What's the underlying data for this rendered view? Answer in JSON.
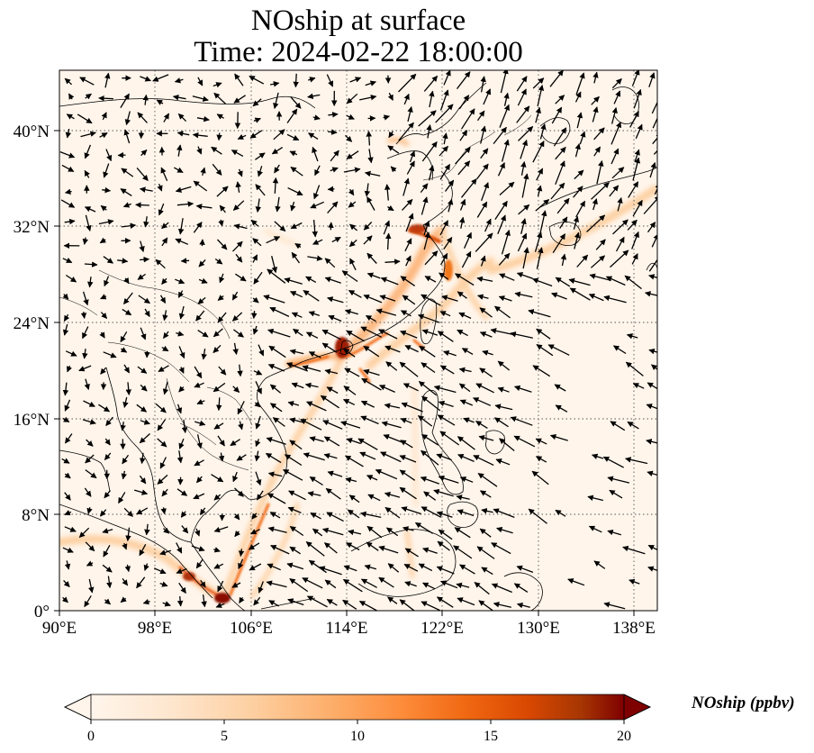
{
  "title": {
    "line1": "NOship at surface",
    "line2": "Time: 2024-02-22 18:00:00"
  },
  "map": {
    "lon_range": [
      90,
      140
    ],
    "lat_range": [
      0,
      45
    ],
    "x_ticks": [
      "90°E",
      "98°E",
      "106°E",
      "114°E",
      "122°E",
      "130°E",
      "138°E"
    ],
    "y_ticks": [
      "0°",
      "8°N",
      "16°N",
      "24°N",
      "32°N",
      "40°N"
    ],
    "gridlines": "dotted",
    "background_color": "#fff5eb",
    "vector_color": "#000000"
  },
  "colorbar": {
    "label": "NOship (ppbv)",
    "ticks": [
      "0",
      "5",
      "10",
      "15",
      "20"
    ],
    "min": 0,
    "max": 20,
    "extend": "both",
    "colormap": [
      "#fff5eb",
      "#fdd0a2",
      "#fdae6b",
      "#fd8d3c",
      "#f16913",
      "#d94801",
      "#a63603",
      "#7f0000"
    ]
  }
}
